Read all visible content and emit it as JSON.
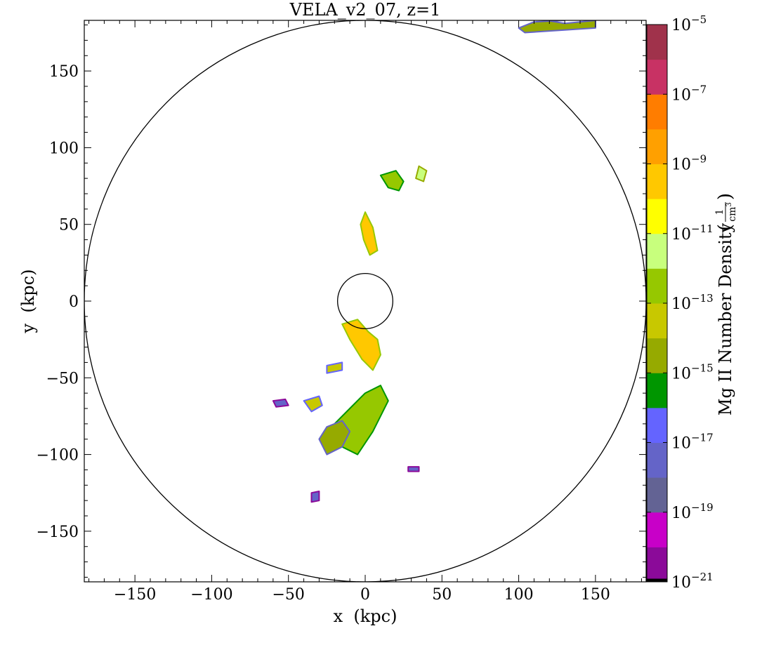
{
  "chart_data": {
    "type": "heatmap",
    "title": "VELA_v2_07, z=1",
    "xlabel": "x  (kpc)",
    "ylabel": "y  (kpc)",
    "xlim": [
      -183,
      183
    ],
    "ylim": [
      -183,
      183
    ],
    "xticks": [
      -150,
      -100,
      -50,
      0,
      50,
      100,
      150
    ],
    "yticks": [
      -150,
      -100,
      -50,
      0,
      50,
      100,
      150
    ],
    "xtick_labels": [
      "−150",
      "−100",
      "−50",
      "0",
      "50",
      "100",
      "150"
    ],
    "ytick_labels": [
      "−150",
      "−100",
      "−50",
      "0",
      "50",
      "100",
      "150"
    ],
    "circles": [
      {
        "label": "outer",
        "cx": 0,
        "cy": 0,
        "r": 183
      },
      {
        "label": "inner",
        "cx": 0,
        "cy": 0,
        "r": 18
      }
    ],
    "colorbar": {
      "label": "Mg II Number Density",
      "unit_numerator": "1",
      "unit_denominator": "cm",
      "unit_exponent": "3",
      "log_min": -21,
      "log_max": -5,
      "tick_exponents": [
        -5,
        -7,
        -9,
        -11,
        -13,
        -15,
        -17,
        -19,
        -21
      ],
      "tick_base": "10",
      "tick_labels": [
        "−5",
        "−7",
        "−9",
        "−11",
        "−13",
        "−15",
        "−17",
        "−19",
        "−21"
      ],
      "bands": [
        {
          "from": -21.0,
          "to": -20.9,
          "color": "#000000"
        },
        {
          "from": -20.9,
          "to": -20.0,
          "color": "#8b0a99"
        },
        {
          "from": -20.0,
          "to": -19.0,
          "color": "#c800c8"
        },
        {
          "from": -19.0,
          "to": -18.0,
          "color": "#636394"
        },
        {
          "from": -18.0,
          "to": -17.0,
          "color": "#6464c8"
        },
        {
          "from": -17.0,
          "to": -16.0,
          "color": "#6464ff"
        },
        {
          "from": -16.0,
          "to": -15.0,
          "color": "#009600"
        },
        {
          "from": -15.0,
          "to": -14.0,
          "color": "#96aa00"
        },
        {
          "from": -14.0,
          "to": -13.0,
          "color": "#c8c800"
        },
        {
          "from": -13.0,
          "to": -12.0,
          "color": "#96c800"
        },
        {
          "from": -12.0,
          "to": -11.0,
          "color": "#c8ff7d"
        },
        {
          "from": -11.0,
          "to": -10.0,
          "color": "#ffff00"
        },
        {
          "from": -10.0,
          "to": -9.0,
          "color": "#ffc800"
        },
        {
          "from": -9.0,
          "to": -8.0,
          "color": "#ffa000"
        },
        {
          "from": -8.0,
          "to": -7.0,
          "color": "#ff7d00"
        },
        {
          "from": -7.0,
          "to": -6.0,
          "color": "#c83264"
        },
        {
          "from": -6.0,
          "to": -5.0,
          "color": "#a0324b"
        }
      ]
    },
    "blobs": [
      {
        "x": [
          130,
          110,
          100,
          104,
          150,
          150,
          130,
          118
        ],
        "y": [
          183,
          182,
          178,
          175,
          178,
          183,
          181,
          183
        ],
        "level": -14
      },
      {
        "x": [
          0,
          -3,
          -1,
          3,
          8,
          5,
          0
        ],
        "y": [
          58,
          50,
          40,
          30,
          33,
          48,
          58
        ],
        "level": -9
      },
      {
        "x": [
          10,
          20,
          25,
          22,
          15,
          10
        ],
        "y": [
          82,
          85,
          78,
          72,
          74,
          82
        ],
        "level": -12
      },
      {
        "x": [
          35,
          40,
          38,
          33,
          35
        ],
        "y": [
          88,
          85,
          78,
          80,
          88
        ],
        "level": -11
      },
      {
        "x": [
          -15,
          -5,
          2,
          8,
          10,
          5,
          -2,
          -10,
          -15
        ],
        "y": [
          -15,
          -12,
          -20,
          -25,
          -35,
          -45,
          -38,
          -25,
          -15
        ],
        "level": -9
      },
      {
        "x": [
          -20,
          -10,
          0,
          10,
          15,
          5,
          -5,
          -15,
          -20
        ],
        "y": [
          -80,
          -70,
          -60,
          -55,
          -65,
          -85,
          -100,
          -95,
          -80
        ],
        "level": -12
      },
      {
        "x": [
          -25,
          -15,
          -10,
          -15,
          -25,
          -30,
          -25
        ],
        "y": [
          -100,
          -95,
          -85,
          -78,
          -82,
          -90,
          -100
        ],
        "level": -14
      },
      {
        "x": [
          -40,
          -30,
          -28,
          -35,
          -40
        ],
        "y": [
          -65,
          -62,
          -68,
          -72,
          -65
        ],
        "level": -13
      },
      {
        "x": [
          -60,
          -52,
          -50,
          -58,
          -60
        ],
        "y": [
          -65,
          -64,
          -68,
          -69,
          -65
        ],
        "level": -17
      },
      {
        "x": [
          -25,
          -15,
          -15,
          -25,
          -25
        ],
        "y": [
          -42,
          -40,
          -45,
          -47,
          -42
        ],
        "level": -13
      },
      {
        "x": [
          -35,
          -30,
          -30,
          -35,
          -35
        ],
        "y": [
          -125,
          -124,
          -130,
          -131,
          -125
        ],
        "level": -17
      },
      {
        "x": [
          28,
          35,
          35,
          28,
          28
        ],
        "y": [
          -108,
          -108,
          -111,
          -111,
          -108
        ],
        "level": -17
      }
    ]
  }
}
